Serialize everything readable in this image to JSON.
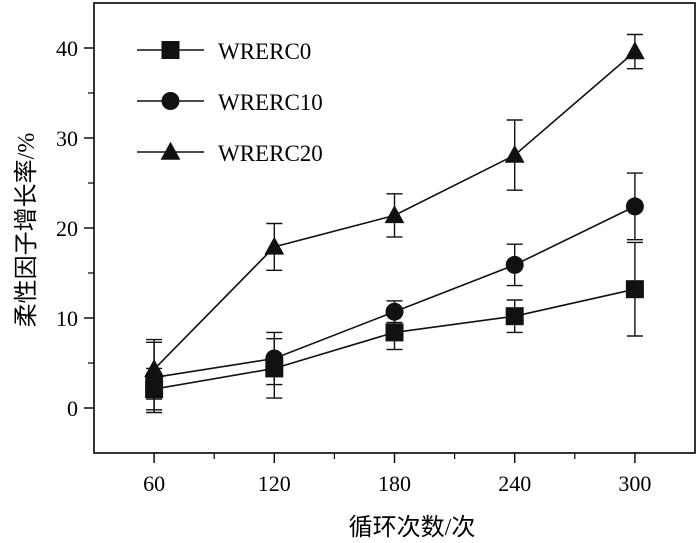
{
  "chart_data": {
    "type": "line",
    "xlabel": "循环次数/次",
    "ylabel": "柔性因子增长率/%",
    "x": [
      60,
      120,
      180,
      240,
      300
    ],
    "xticks": [
      60,
      120,
      180,
      240,
      300
    ],
    "xlim": [
      30,
      330
    ],
    "yticks": [
      0,
      10,
      20,
      30,
      40
    ],
    "ylim": [
      -5,
      45
    ],
    "grid": false,
    "legend_position": "top-left",
    "series": [
      {
        "name": "WRERC0",
        "marker": "square",
        "values": [
          2.1,
          4.4,
          8.4,
          10.2,
          13.2
        ],
        "error": [
          2.3,
          3.3,
          1.9,
          1.8,
          5.2
        ]
      },
      {
        "name": "WRERC10",
        "marker": "circle",
        "values": [
          3.4,
          5.5,
          10.7,
          15.9,
          22.4
        ],
        "error": [
          3.9,
          2.9,
          1.2,
          2.3,
          3.7
        ]
      },
      {
        "name": "WRERC20",
        "marker": "triangle",
        "values": [
          4.3,
          17.9,
          21.4,
          28.1,
          39.6
        ],
        "error": [
          3.3,
          2.6,
          2.4,
          3.9,
          1.9
        ]
      }
    ]
  }
}
